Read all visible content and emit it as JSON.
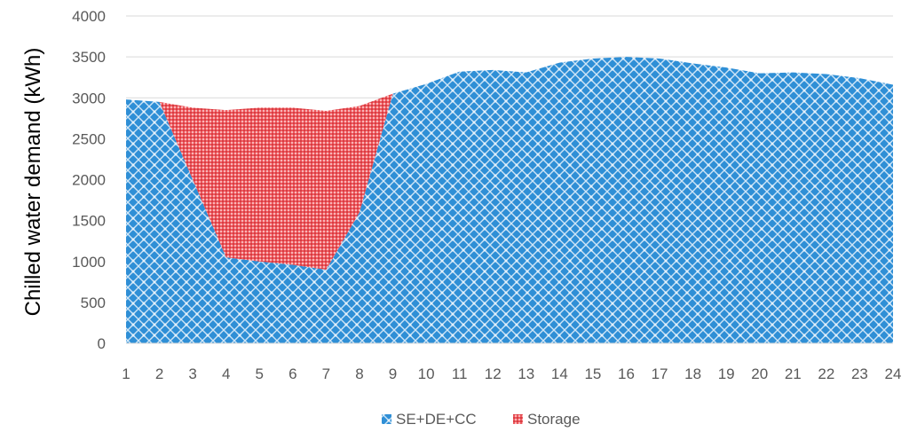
{
  "chart_data": {
    "type": "area",
    "stacked": true,
    "title": "",
    "xlabel": "",
    "ylabel": "Chilled water demand (kWh)",
    "x": [
      1,
      2,
      3,
      4,
      5,
      6,
      7,
      8,
      9,
      10,
      11,
      12,
      13,
      14,
      15,
      16,
      17,
      18,
      19,
      20,
      21,
      22,
      23,
      24
    ],
    "ylim": [
      0,
      4000
    ],
    "yticks": [
      0,
      500,
      1000,
      1500,
      2000,
      2500,
      3000,
      3500,
      4000
    ],
    "grid": true,
    "legend": "bottom",
    "series": [
      {
        "name": "SE+DE+CC",
        "color": "#3a95d8",
        "values": [
          2980,
          2950,
          2000,
          1050,
          1000,
          960,
          900,
          1600,
          3050,
          3170,
          3320,
          3340,
          3310,
          3430,
          3480,
          3500,
          3480,
          3420,
          3370,
          3300,
          3310,
          3290,
          3240,
          3160
        ]
      },
      {
        "name": "Storage",
        "color": "#e8454b",
        "values": [
          0,
          0,
          880,
          1800,
          1880,
          1920,
          1940,
          1300,
          0,
          0,
          0,
          0,
          0,
          0,
          0,
          0,
          0,
          0,
          0,
          0,
          0,
          0,
          0,
          0
        ]
      }
    ]
  }
}
